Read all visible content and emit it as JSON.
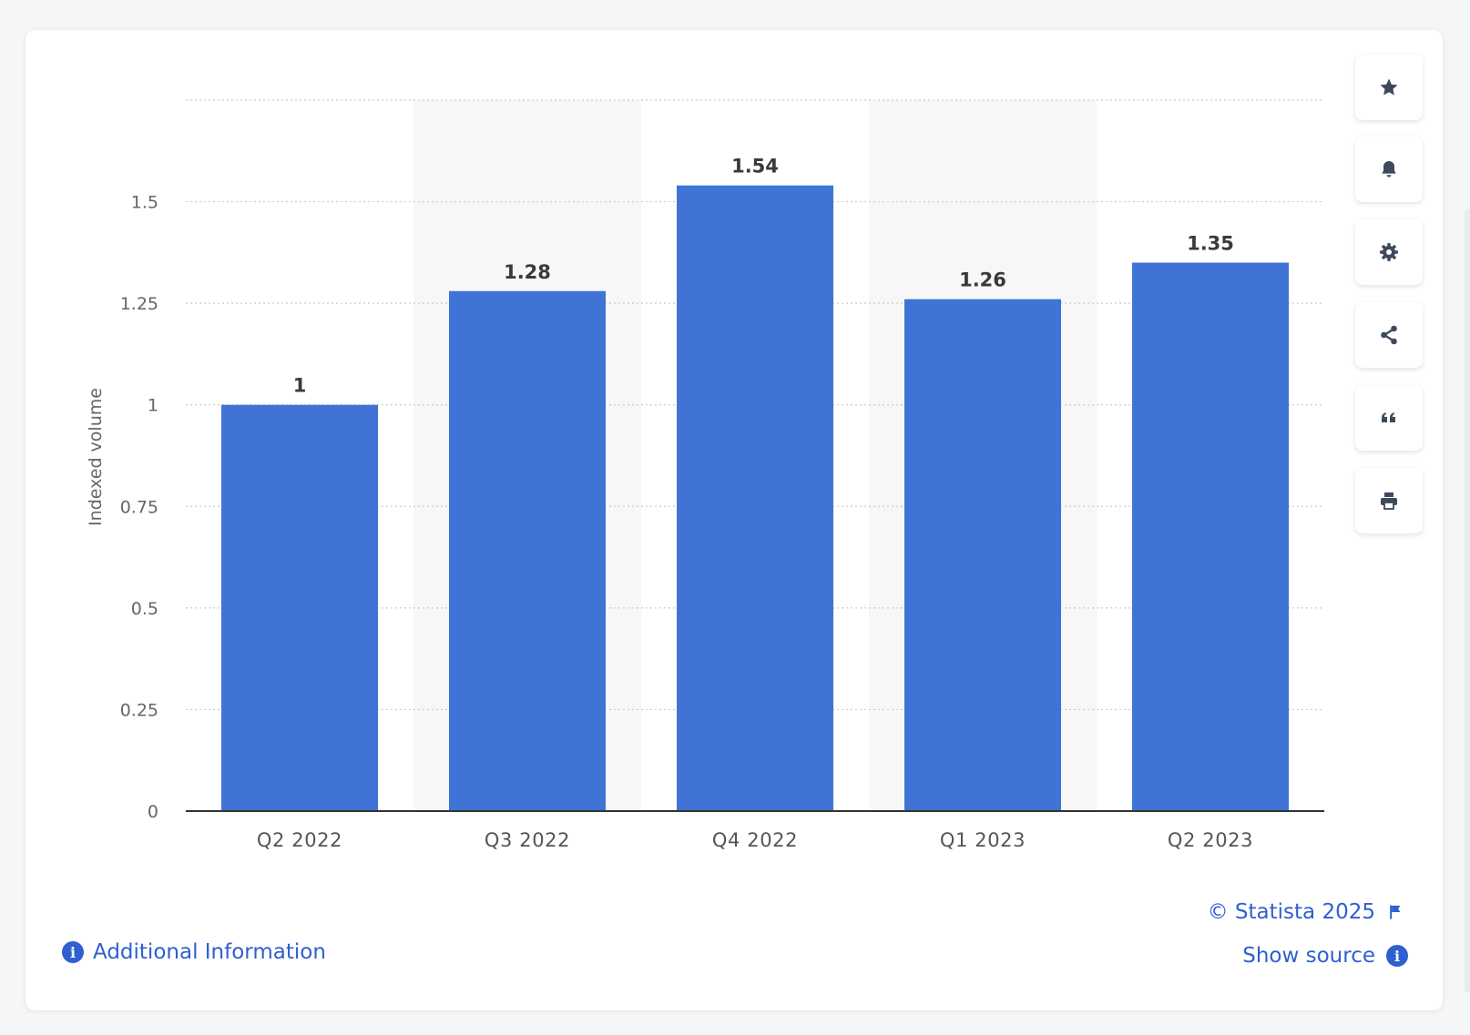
{
  "colors": {
    "bar": "#3f74d6",
    "link": "#2f5fd0",
    "icon": "#3d4a5c",
    "grid": "#c9ccd2",
    "axis": "#333333",
    "band": "#f7f7f8"
  },
  "toolbar": {
    "buttons": [
      {
        "name": "favorite",
        "icon": "star-icon"
      },
      {
        "name": "notification",
        "icon": "bell-icon"
      },
      {
        "name": "settings",
        "icon": "gear-icon"
      },
      {
        "name": "share",
        "icon": "share-icon"
      },
      {
        "name": "cite",
        "icon": "quote-icon"
      },
      {
        "name": "print",
        "icon": "printer-icon"
      }
    ]
  },
  "footer": {
    "additional_info": "Additional Information",
    "copyright": "© Statista 2025",
    "show_source": "Show source",
    "info_glyph": "i"
  },
  "chart_data": {
    "type": "bar",
    "categories": [
      "Q2 2022",
      "Q3 2022",
      "Q4 2022",
      "Q1 2023",
      "Q2 2023"
    ],
    "values": [
      1,
      1.28,
      1.54,
      1.26,
      1.35
    ],
    "value_labels": [
      "1",
      "1.28",
      "1.54",
      "1.26",
      "1.35"
    ],
    "title": "",
    "xlabel": "",
    "ylabel": "Indexed volume",
    "ylim": [
      0,
      1.75
    ],
    "yticks": [
      0,
      0.25,
      0.5,
      0.75,
      1,
      1.25,
      1.5
    ],
    "ytick_labels": [
      "0",
      "0.25",
      "0.5",
      "0.75",
      "1",
      "1.25",
      "1.5"
    ],
    "grid": true,
    "legend": "none"
  }
}
